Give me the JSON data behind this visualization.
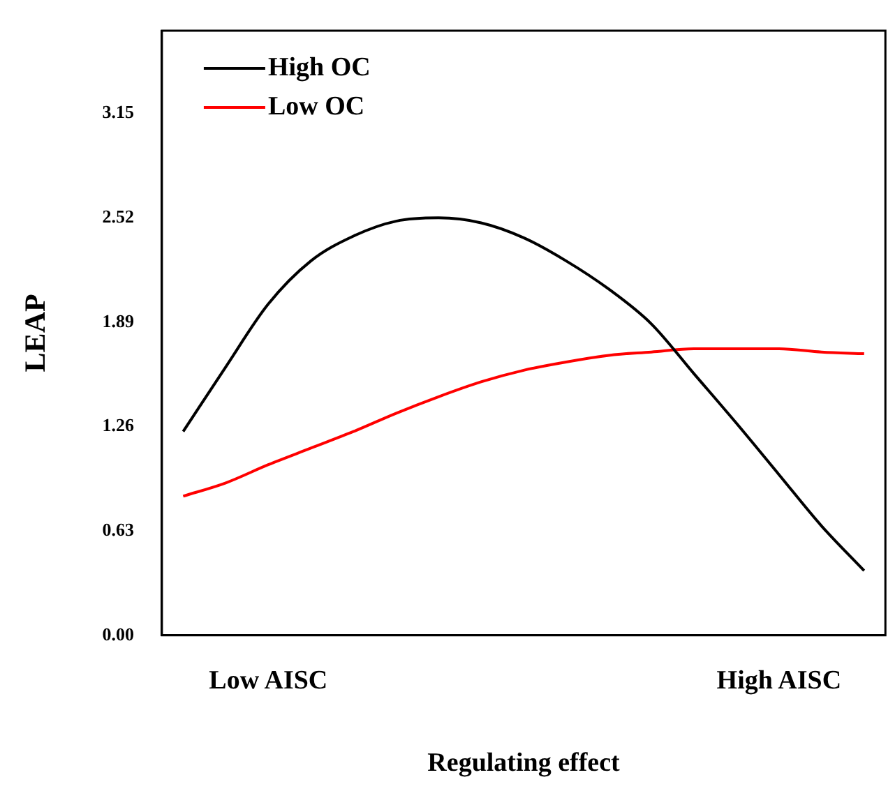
{
  "chart_data": {
    "type": "line",
    "xlabel": "Regulating effect",
    "ylabel": "LEAP",
    "categories": [
      null,
      null,
      "Low AISC",
      null,
      null,
      null,
      null,
      null,
      null,
      null,
      null,
      null,
      null,
      null,
      "High AISC",
      null,
      null
    ],
    "series": [
      {
        "name": "High OC",
        "color": "#000000",
        "values": [
          1.23,
          1.62,
          2.0,
          2.26,
          2.41,
          2.5,
          2.52,
          2.49,
          2.4,
          2.26,
          2.09,
          1.88,
          1.58,
          1.28,
          0.97,
          0.66,
          0.39
        ]
      },
      {
        "name": "Low OC",
        "color": "#ff0000",
        "values": [
          0.84,
          0.92,
          1.03,
          1.13,
          1.23,
          1.34,
          1.44,
          1.53,
          1.6,
          1.65,
          1.69,
          1.71,
          1.73,
          1.73,
          1.73,
          1.71,
          1.7
        ]
      }
    ],
    "ylim": [
      0,
      3.65
    ],
    "yticks": [
      {
        "value": 0,
        "label": "0.00"
      },
      0.63,
      1.26,
      1.89,
      2.52,
      3.15
    ],
    "grid": false,
    "legend": "top left",
    "marker": "none",
    "line_style": "solid"
  }
}
